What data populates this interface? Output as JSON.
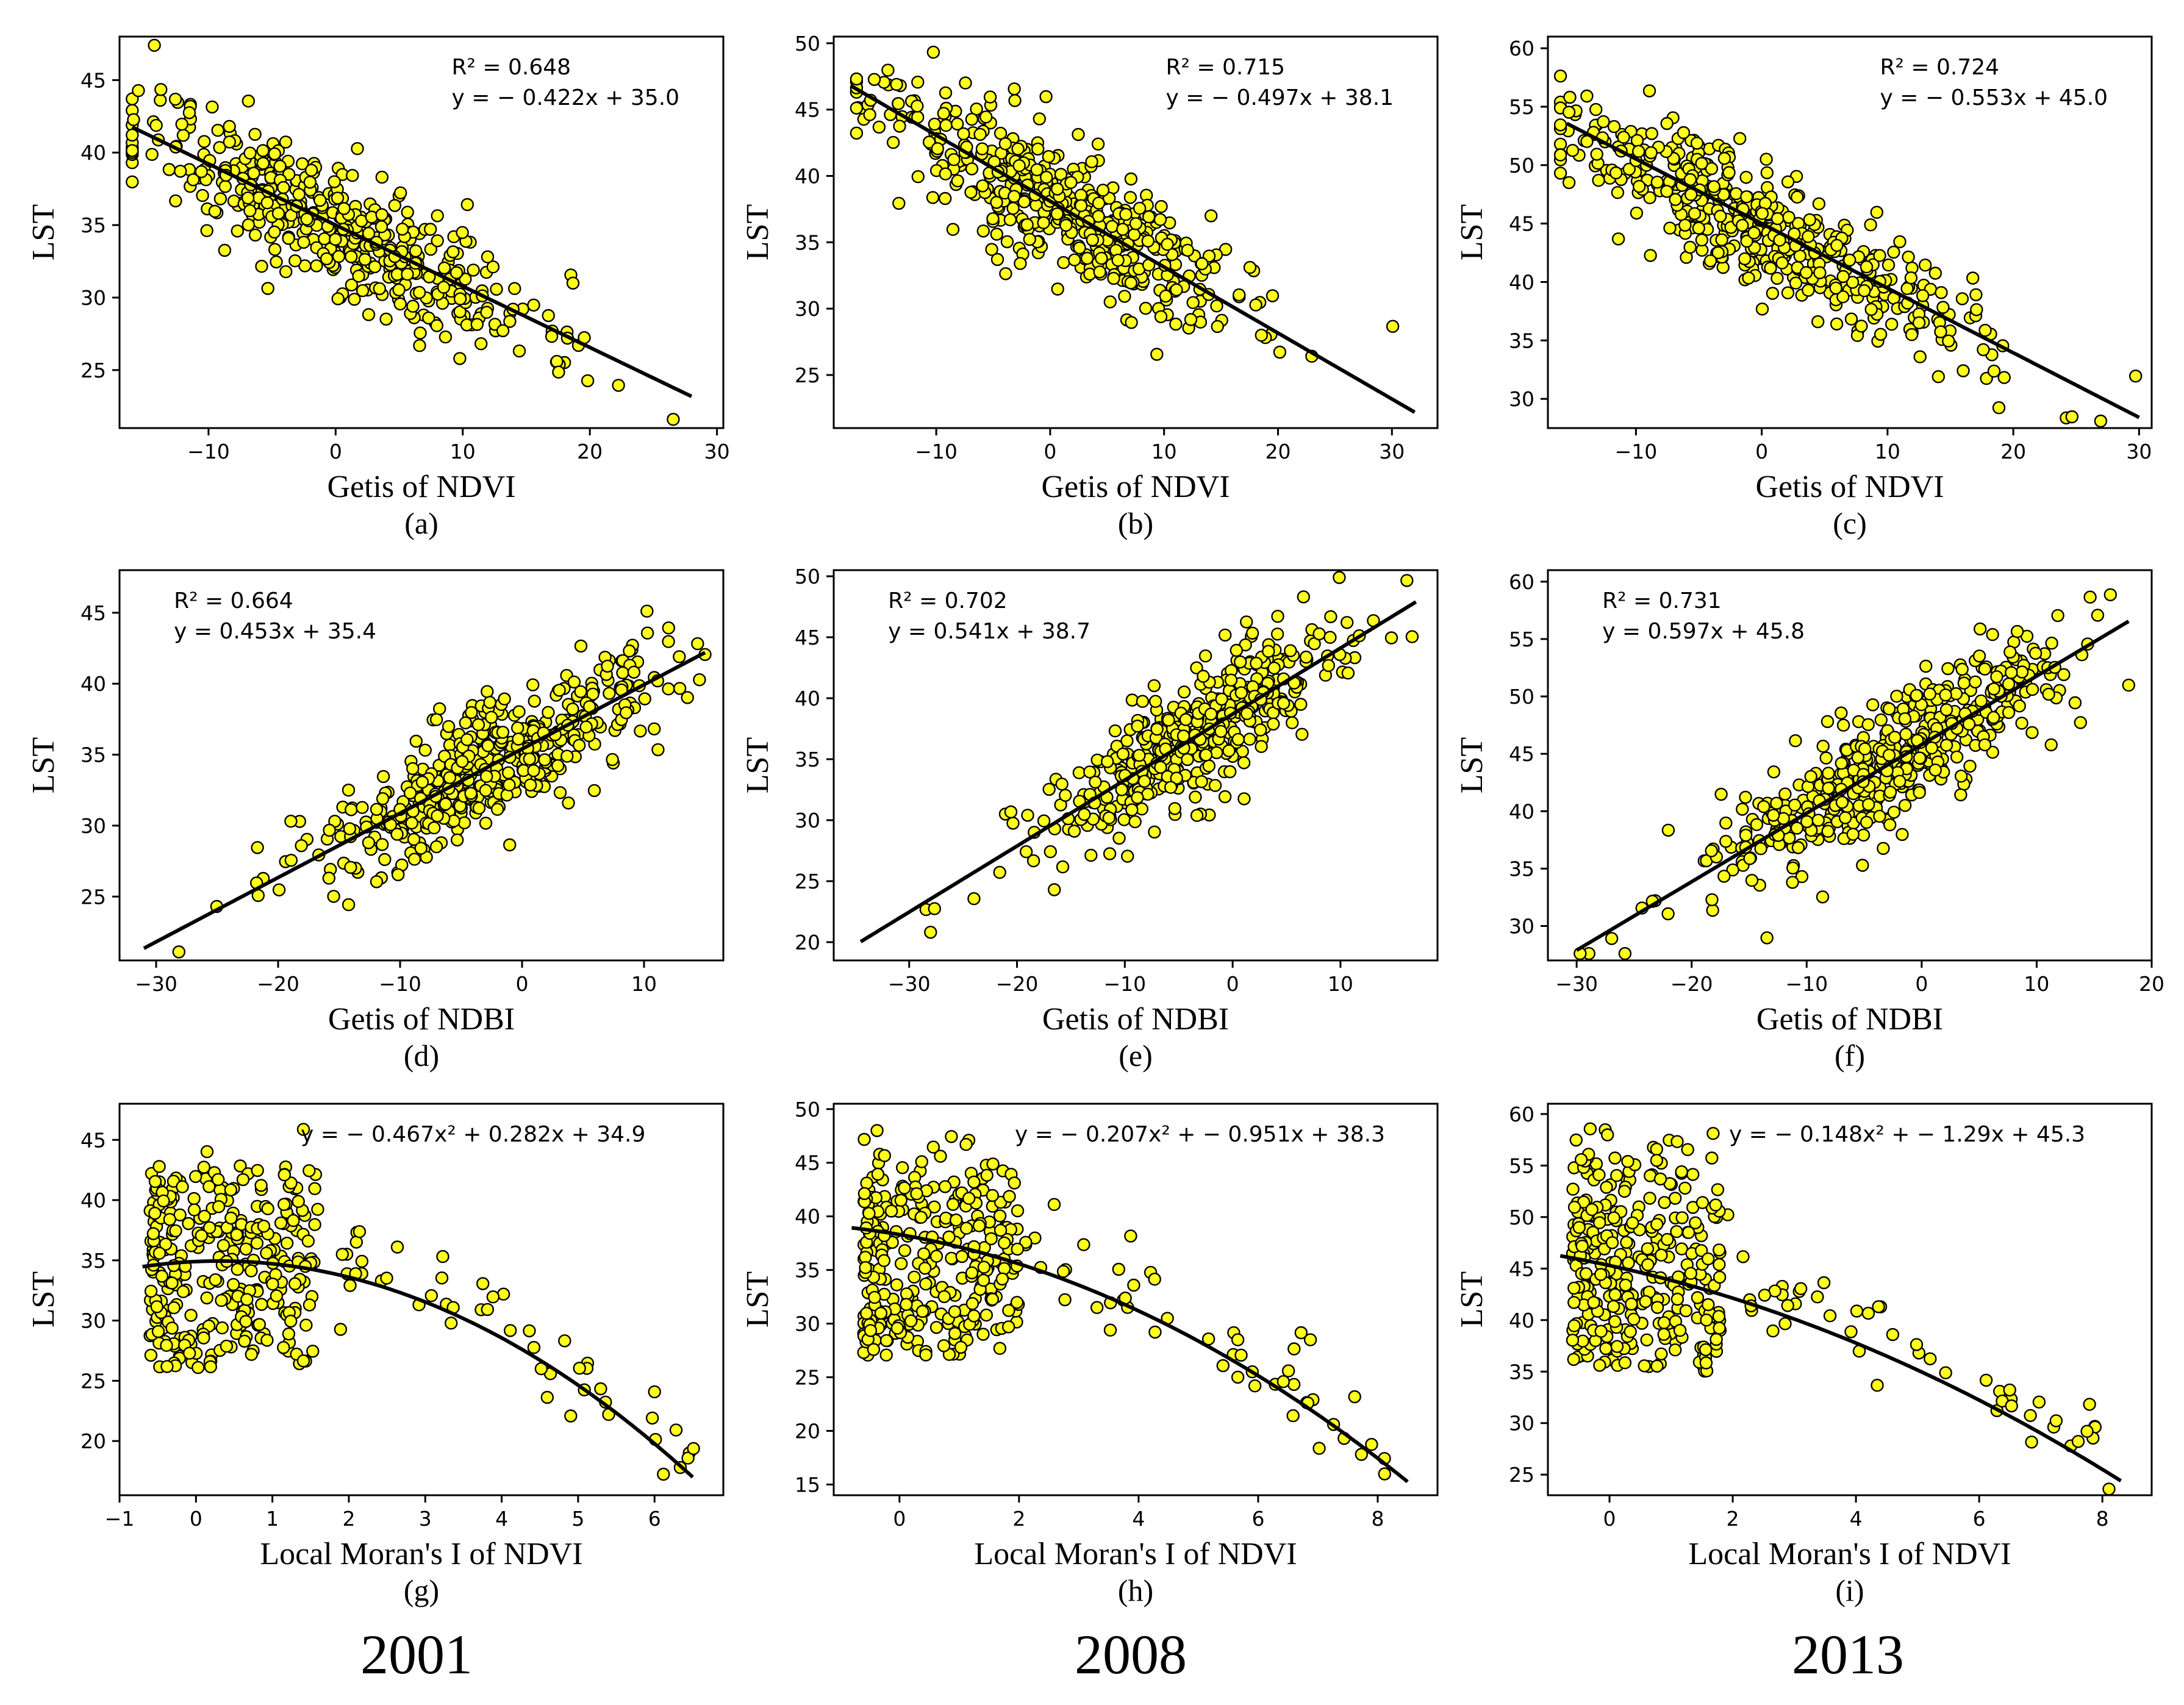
{
  "colors": {
    "point_fill": "#ffff1a",
    "point_edge": "#000000",
    "line": "#000000"
  },
  "years": [
    "2001",
    "2008",
    "2013"
  ],
  "chart_data": [
    {
      "id": "a",
      "type": "scatter",
      "panel_label": "(a)",
      "xlabel": "Getis of NDVI",
      "ylabel": "LST",
      "xlim": [
        -17,
        30.5
      ],
      "ylim": [
        21,
        48
      ],
      "xticks": [
        -10,
        0,
        10,
        20,
        30
      ],
      "yticks": [
        25,
        30,
        35,
        40,
        45
      ],
      "xtick_labels": [
        "−10",
        "0",
        "10",
        "20",
        "30"
      ],
      "ytick_labels": [
        "25",
        "30",
        "35",
        "40",
        "45"
      ],
      "fit": {
        "kind": "linear",
        "slope": -0.422,
        "intercept": 35.0,
        "x_range": [
          -16,
          28
        ]
      },
      "annotation_position": "top-right",
      "annotation": {
        "r2": "R² = 0.648",
        "equation": "y = − 0.422x + 35.0"
      },
      "point_cloud": {
        "n": 460,
        "x_range": [
          -16,
          28
        ],
        "x_center": 0,
        "x_spread": 8,
        "noise": 2.2,
        "seed": 11
      }
    },
    {
      "id": "b",
      "type": "scatter",
      "panel_label": "(b)",
      "xlabel": "Getis of NDVI",
      "ylabel": "LST",
      "xlim": [
        -19,
        34
      ],
      "ylim": [
        21,
        50.5
      ],
      "xticks": [
        -10,
        0,
        10,
        20,
        30
      ],
      "yticks": [
        25,
        30,
        35,
        40,
        45,
        50
      ],
      "xtick_labels": [
        "−10",
        "0",
        "10",
        "20",
        "30"
      ],
      "ytick_labels": [
        "25",
        "30",
        "35",
        "40",
        "45",
        "50"
      ],
      "fit": {
        "kind": "linear",
        "slope": -0.497,
        "intercept": 38.1,
        "x_range": [
          -17.5,
          32
        ]
      },
      "annotation_position": "top-right",
      "annotation": {
        "r2": "R² = 0.715",
        "equation": "y = − 0.497x + 38.1"
      },
      "point_cloud": {
        "n": 470,
        "x_range": [
          -17,
          32
        ],
        "x_center": 0,
        "x_spread": 8,
        "noise": 2.5,
        "seed": 23
      }
    },
    {
      "id": "c",
      "type": "scatter",
      "panel_label": "(c)",
      "xlabel": "Getis of NDVI",
      "ylabel": "LST",
      "xlim": [
        -17,
        31
      ],
      "ylim": [
        27.5,
        61
      ],
      "xticks": [
        -10,
        0,
        10,
        20,
        30
      ],
      "yticks": [
        30,
        35,
        40,
        45,
        50,
        55,
        60
      ],
      "xtick_labels": [
        "−10",
        "0",
        "10",
        "20",
        "30"
      ],
      "ytick_labels": [
        "30",
        "35",
        "40",
        "45",
        "50",
        "55",
        "60"
      ],
      "fit": {
        "kind": "linear",
        "slope": -0.553,
        "intercept": 45.0,
        "x_range": [
          -15.5,
          30
        ]
      },
      "annotation_position": "top-right",
      "annotation": {
        "r2": "R² = 0.724",
        "equation": "y = − 0.553x + 45.0"
      },
      "point_cloud": {
        "n": 470,
        "x_range": [
          -16,
          30
        ],
        "x_center": 0,
        "x_spread": 8,
        "noise": 2.6,
        "seed": 37
      }
    },
    {
      "id": "d",
      "type": "scatter",
      "panel_label": "(d)",
      "xlabel": "Getis of NDBI",
      "ylabel": "LST",
      "xlim": [
        -33,
        16.5
      ],
      "ylim": [
        20.5,
        48
      ],
      "xticks": [
        -30,
        -20,
        -10,
        0,
        10
      ],
      "yticks": [
        25,
        30,
        35,
        40,
        45
      ],
      "xtick_labels": [
        "−30",
        "−20",
        "−10",
        "0",
        "10"
      ],
      "ytick_labels": [
        "25",
        "30",
        "35",
        "40",
        "45"
      ],
      "fit": {
        "kind": "linear",
        "slope": 0.453,
        "intercept": 35.4,
        "x_range": [
          -31,
          15
        ]
      },
      "annotation_position": "top-left",
      "annotation": {
        "r2": "R² = 0.664",
        "equation": "y = 0.453x + 35.4"
      },
      "point_cloud": {
        "n": 470,
        "x_range": [
          -31,
          15
        ],
        "x_center": -3,
        "x_spread": 7,
        "noise": 2.2,
        "seed": 41
      }
    },
    {
      "id": "e",
      "type": "scatter",
      "panel_label": "(e)",
      "xlabel": "Getis of NDBI",
      "ylabel": "LST",
      "xlim": [
        -37,
        19
      ],
      "ylim": [
        18.5,
        50.5
      ],
      "xticks": [
        -30,
        -20,
        -10,
        0,
        10
      ],
      "yticks": [
        20,
        25,
        30,
        35,
        40,
        45,
        50
      ],
      "xtick_labels": [
        "−30",
        "−20",
        "−10",
        "0",
        "10"
      ],
      "ytick_labels": [
        "20",
        "25",
        "30",
        "35",
        "40",
        "45",
        "50"
      ],
      "fit": {
        "kind": "linear",
        "slope": 0.541,
        "intercept": 38.7,
        "x_range": [
          -34.5,
          17
        ]
      },
      "annotation_position": "top-left",
      "annotation": {
        "r2": "R² = 0.702",
        "equation": "y = 0.541x + 38.7"
      },
      "point_cloud": {
        "n": 470,
        "x_range": [
          -34,
          17
        ],
        "x_center": -3,
        "x_spread": 7,
        "noise": 2.5,
        "seed": 53
      }
    },
    {
      "id": "f",
      "type": "scatter",
      "panel_label": "(f)",
      "xlabel": "Getis of NDBI",
      "ylabel": "LST",
      "xlim": [
        -32.5,
        20
      ],
      "ylim": [
        27,
        61
      ],
      "xticks": [
        -30,
        -20,
        -10,
        0,
        10,
        20
      ],
      "yticks": [
        30,
        35,
        40,
        45,
        50,
        55,
        60
      ],
      "xtick_labels": [
        "−30",
        "−20",
        "−10",
        "0",
        "10",
        "20"
      ],
      "ytick_labels": [
        "30",
        "35",
        "40",
        "45",
        "50",
        "55",
        "60"
      ],
      "fit": {
        "kind": "linear",
        "slope": 0.597,
        "intercept": 45.8,
        "x_range": [
          -30,
          18
        ]
      },
      "annotation_position": "top-left",
      "annotation": {
        "r2": "R² = 0.731",
        "equation": "y = 0.597x + 45.8"
      },
      "point_cloud": {
        "n": 480,
        "x_range": [
          -30,
          18
        ],
        "x_center": -3,
        "x_spread": 7,
        "noise": 2.6,
        "seed": 67
      }
    },
    {
      "id": "g",
      "type": "scatter",
      "panel_label": "(g)",
      "xlabel": "Local Moran's I of NDVI",
      "ylabel": "LST",
      "xlim": [
        -1,
        6.9
      ],
      "ylim": [
        15.5,
        48
      ],
      "xticks": [
        -1,
        0,
        1,
        2,
        3,
        4,
        5,
        6
      ],
      "yticks": [
        20,
        25,
        30,
        35,
        40,
        45
      ],
      "xtick_labels": [
        "−1",
        "0",
        "1",
        "2",
        "3",
        "4",
        "5",
        "6"
      ],
      "ytick_labels": [
        "20",
        "25",
        "30",
        "35",
        "40",
        "45"
      ],
      "fit": {
        "kind": "quadratic",
        "a": -0.467,
        "b": 0.282,
        "c": 34.9,
        "x_range": [
          -0.7,
          6.5
        ]
      },
      "annotation_position": "top-right",
      "annotation": {
        "equation": "y = − 0.467x² + 0.282x + 34.9"
      },
      "point_cloud": {
        "n": 360,
        "x_range": [
          -0.7,
          6.6
        ],
        "cluster_x": [
          -0.6,
          1.6
        ],
        "y_band": [
          26,
          46
        ],
        "tail_frac": 0.14,
        "seed": 71
      }
    },
    {
      "id": "h",
      "type": "scatter",
      "panel_label": "(h)",
      "xlabel": "Local Moran's I of NDVI",
      "ylabel": "LST",
      "xlim": [
        -1.1,
        9.0
      ],
      "ylim": [
        14,
        50.5
      ],
      "xticks": [
        0,
        2,
        4,
        6,
        8
      ],
      "yticks": [
        15,
        20,
        25,
        30,
        35,
        40,
        45,
        50
      ],
      "xtick_labels": [
        "0",
        "2",
        "4",
        "6",
        "8"
      ],
      "ytick_labels": [
        "15",
        "20",
        "25",
        "30",
        "35",
        "40",
        "45",
        "50"
      ],
      "fit": {
        "kind": "quadratic",
        "a": -0.207,
        "b": -0.951,
        "c": 38.3,
        "x_range": [
          -0.8,
          8.5
        ]
      },
      "annotation_position": "top-right",
      "annotation": {
        "equation": "y = − 0.207x² + − 0.951x + 38.3"
      },
      "point_cloud": {
        "n": 360,
        "x_range": [
          -0.8,
          8.5
        ],
        "cluster_x": [
          -0.6,
          2.0
        ],
        "y_band": [
          27,
          49
        ],
        "tail_frac": 0.14,
        "seed": 83
      }
    },
    {
      "id": "i",
      "type": "scatter",
      "panel_label": "(i)",
      "xlabel": "Local Moran's I of NDVI",
      "ylabel": "LST",
      "xlim": [
        -1.0,
        8.8
      ],
      "ylim": [
        23,
        61
      ],
      "xticks": [
        0,
        2,
        4,
        6,
        8
      ],
      "yticks": [
        25,
        30,
        35,
        40,
        45,
        50,
        55,
        60
      ],
      "xtick_labels": [
        "0",
        "2",
        "4",
        "6",
        "8"
      ],
      "ytick_labels": [
        "25",
        "30",
        "35",
        "40",
        "45",
        "50",
        "55",
        "60"
      ],
      "fit": {
        "kind": "quadratic",
        "a": -0.148,
        "b": -1.29,
        "c": 45.3,
        "x_range": [
          -0.8,
          8.3
        ]
      },
      "annotation_position": "top-right",
      "annotation": {
        "equation": "y = − 0.148x² + − 1.29x + 45.3"
      },
      "point_cloud": {
        "n": 360,
        "x_range": [
          -0.8,
          8.3
        ],
        "cluster_x": [
          -0.6,
          1.8
        ],
        "y_band": [
          35,
          59
        ],
        "tail_frac": 0.14,
        "seed": 97
      }
    }
  ]
}
